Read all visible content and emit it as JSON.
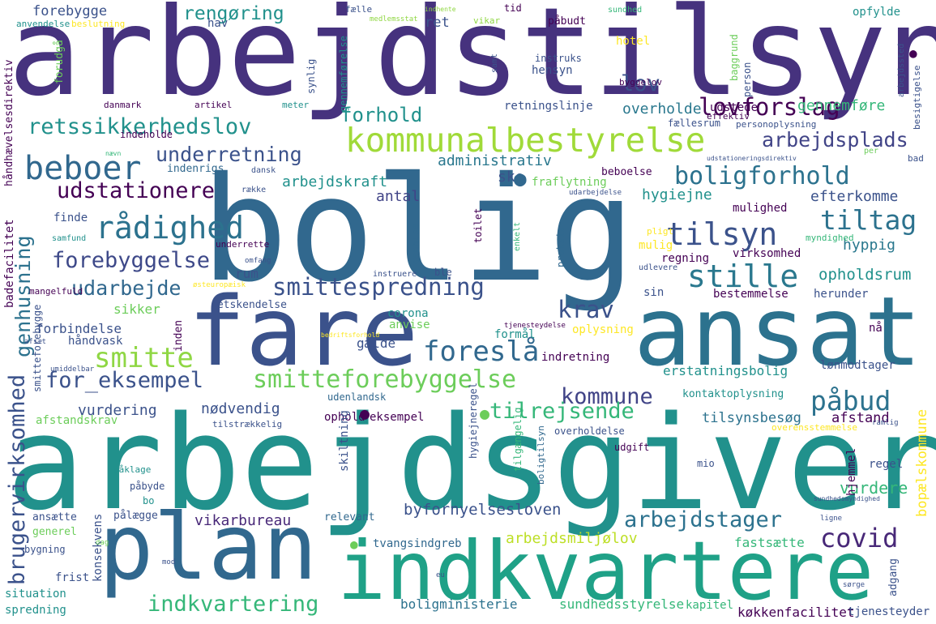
{
  "palette": {
    "dark": "#440154",
    "indigo": "#3b528b",
    "blue": "#31688e",
    "teal": "#21918c",
    "green": "#35b779",
    "lime": "#90d743",
    "yellow": "#fde725"
  },
  "words": [
    "arbejdstilsyn",
    "bolig",
    "arbejdsgiver",
    "fare",
    "ansat",
    "plan",
    "indkvartere",
    "kommunalbestyrelse",
    "beboer",
    "rådighed",
    "udstationere",
    "underretning",
    "retssikkerhedslov",
    "boligforhold",
    "tilsyn",
    "arbejdsplads",
    "lovforslag",
    "stille",
    "smittespredning",
    "smitte",
    "smitteforebyggelse",
    "foreslå",
    "krav",
    "påbud",
    "covid",
    "tiltag",
    "forebyggelse",
    "udarbejde",
    "for_eksempel",
    "kommune",
    "arbejdstager",
    "tilrejsende",
    "indkvartering",
    "genhusning",
    "brugervirksomhed",
    "forhold",
    "rengøring",
    "forebygge",
    "lov",
    "ret",
    "arbejdskraft",
    "administrativ",
    "overholde",
    "gennemføre",
    "efterkomme",
    "hygiejne",
    "antal",
    "ske",
    "opholdsrum",
    "hyppig",
    "vurdering",
    "nødvendig",
    "vurdere",
    "afstand",
    "tilsynsbesøg",
    "bopælskommune",
    "byfornyelsesloven",
    "vikarbureau",
    "arbejdsmiljølov",
    "fastsætte",
    "sundhedsstyrelse",
    "boligministerie",
    "køkkenfacilitet",
    "tjenesteyder",
    "erstatningsbolig",
    "opfylde",
    "forbindelse",
    "sikker",
    "rum",
    "gælde",
    "corona",
    "anvise",
    "oplysning",
    "indretning",
    "lønmodtager",
    "kontaktoplysning",
    "ophold",
    "eksempel",
    "afstandskrav",
    "konsekvens",
    "frist",
    "situation",
    "spredning",
    "regel",
    "bestemmelse",
    "herunder",
    "sin",
    "virksomhed",
    "regning",
    "mulighed",
    "mulig",
    "fraflytning",
    "beboelse",
    "udstede",
    "fællesrum",
    "person",
    "hotel",
    "påbudt",
    "tid",
    "hav",
    "hensyn",
    "instruks",
    "byggelov",
    "retningslinje",
    "indenrigs",
    "indeholde",
    "artikel",
    "meter",
    "danmark",
    "forudgå",
    "synlig",
    "finde",
    "underrette",
    "toilet",
    "genhuse",
    "praksis",
    "enkelt",
    "håndvask",
    "formål",
    "nå",
    "inden",
    "retskendelse",
    "udenlandsk",
    "skiltning",
    "hygiejneregel",
    "tilgængelig",
    "overholdelse",
    "boligtilsyn",
    "udgift",
    "mio",
    "hjemmel",
    "bo",
    "pålægge",
    "påbyde",
    "påklage",
    "ansætte",
    "generel",
    "bygning",
    "relevant",
    "tvangsindgreb",
    "kapitel",
    "adgang",
    "mangelfuld",
    "badefacilitet",
    "håndhævelsesdirektiv",
    "effektiv",
    "personoplysning",
    "baggrund",
    "gennemførelse",
    "anvendelse",
    "beslutning",
    "fælle",
    "vikar",
    "sundhed",
    "besigtigelse",
    "arbejdssted",
    "samt",
    "medlemsstat",
    "indhente",
    "række",
    "dansk",
    "pligt",
    "myndighed",
    "udlevere",
    "samfund",
    "omfang",
    "instruere",
    "ble",
    "østeuropæisk",
    "tilstrækkelig",
    "overensstemmelse",
    "udarbejdelse",
    "tjenesteydelse",
    "smitteforebygge",
    "bad",
    "per",
    "ligne",
    "mod",
    "eu",
    "dag",
    "sørge",
    "umiddelbar",
    "afsæt",
    "ramlig",
    "bedriftsforhold",
    "udstationeringsdirektiv",
    "sundhedsmyndighed",
    "nævn"
  ]
}
